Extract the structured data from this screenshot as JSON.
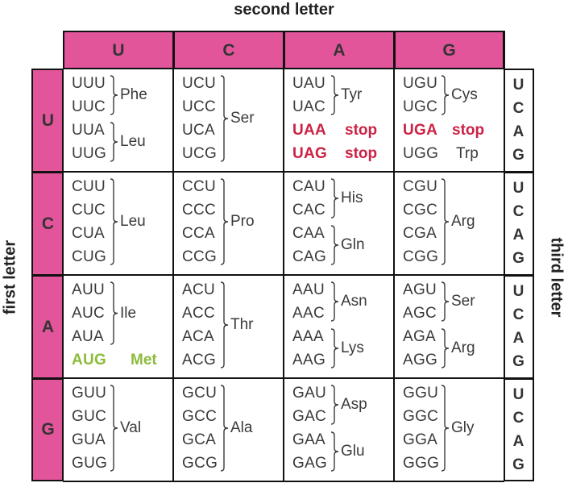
{
  "titles": {
    "top": "second letter",
    "left": "first letter",
    "right": "third letter"
  },
  "colors": {
    "header_fill": "#e2559b",
    "stop": "#cc2245",
    "start": "#8cbc3c",
    "text": "#3a3a3a"
  },
  "second_letters": [
    "U",
    "C",
    "A",
    "G"
  ],
  "first_letters": [
    "U",
    "C",
    "A",
    "G"
  ],
  "third_letters": [
    "U",
    "C",
    "A",
    "G"
  ],
  "rows": [
    {
      "cells": [
        {
          "codons": [
            "UUU",
            "UUC",
            "UUA",
            "UUG"
          ],
          "groups": [
            {
              "span": [
                0,
                1
              ],
              "label": "Phe",
              "kind": "normal"
            },
            {
              "span": [
                2,
                3
              ],
              "label": "Leu",
              "kind": "normal"
            }
          ]
        },
        {
          "codons": [
            "UCU",
            "UCC",
            "UCA",
            "UCG"
          ],
          "groups": [
            {
              "span": [
                0,
                3
              ],
              "label": "Ser",
              "kind": "normal"
            }
          ]
        },
        {
          "codons": [
            "UAU",
            "UAC",
            "UAA",
            "UAG"
          ],
          "groups": [
            {
              "span": [
                0,
                1
              ],
              "label": "Tyr",
              "kind": "normal"
            },
            {
              "span": [
                2,
                2
              ],
              "label": "stop",
              "kind": "stop"
            },
            {
              "span": [
                3,
                3
              ],
              "label": "stop",
              "kind": "stop"
            }
          ]
        },
        {
          "codons": [
            "UGU",
            "UGC",
            "UGA",
            "UGG"
          ],
          "groups": [
            {
              "span": [
                0,
                1
              ],
              "label": "Cys",
              "kind": "normal"
            },
            {
              "span": [
                2,
                2
              ],
              "label": "stop",
              "kind": "stop"
            },
            {
              "span": [
                3,
                3
              ],
              "label": "Trp",
              "kind": "plain"
            }
          ]
        }
      ]
    },
    {
      "cells": [
        {
          "codons": [
            "CUU",
            "CUC",
            "CUA",
            "CUG"
          ],
          "groups": [
            {
              "span": [
                0,
                3
              ],
              "label": "Leu",
              "kind": "normal"
            }
          ]
        },
        {
          "codons": [
            "CCU",
            "CCC",
            "CCA",
            "CCG"
          ],
          "groups": [
            {
              "span": [
                0,
                3
              ],
              "label": "Pro",
              "kind": "normal"
            }
          ]
        },
        {
          "codons": [
            "CAU",
            "CAC",
            "CAA",
            "CAG"
          ],
          "groups": [
            {
              "span": [
                0,
                1
              ],
              "label": "His",
              "kind": "normal"
            },
            {
              "span": [
                2,
                3
              ],
              "label": "Gln",
              "kind": "normal"
            }
          ]
        },
        {
          "codons": [
            "CGU",
            "CGC",
            "CGA",
            "CGG"
          ],
          "groups": [
            {
              "span": [
                0,
                3
              ],
              "label": "Arg",
              "kind": "normal"
            }
          ]
        }
      ]
    },
    {
      "cells": [
        {
          "codons": [
            "AUU",
            "AUC",
            "AUA",
            "AUG"
          ],
          "groups": [
            {
              "span": [
                0,
                2
              ],
              "label": "Ile",
              "kind": "normal"
            },
            {
              "span": [
                3,
                3
              ],
              "label": "Met",
              "kind": "start"
            }
          ]
        },
        {
          "codons": [
            "ACU",
            "ACC",
            "ACA",
            "ACG"
          ],
          "groups": [
            {
              "span": [
                0,
                3
              ],
              "label": "Thr",
              "kind": "normal"
            }
          ]
        },
        {
          "codons": [
            "AAU",
            "AAC",
            "AAA",
            "AAG"
          ],
          "groups": [
            {
              "span": [
                0,
                1
              ],
              "label": "Asn",
              "kind": "normal"
            },
            {
              "span": [
                2,
                3
              ],
              "label": "Lys",
              "kind": "normal"
            }
          ]
        },
        {
          "codons": [
            "AGU",
            "AGC",
            "AGA",
            "AGG"
          ],
          "groups": [
            {
              "span": [
                0,
                1
              ],
              "label": "Ser",
              "kind": "normal"
            },
            {
              "span": [
                2,
                3
              ],
              "label": "Arg",
              "kind": "normal"
            }
          ]
        }
      ]
    },
    {
      "cells": [
        {
          "codons": [
            "GUU",
            "GUC",
            "GUA",
            "GUG"
          ],
          "groups": [
            {
              "span": [
                0,
                3
              ],
              "label": "Val",
              "kind": "normal"
            }
          ]
        },
        {
          "codons": [
            "GCU",
            "GCC",
            "GCA",
            "GCG"
          ],
          "groups": [
            {
              "span": [
                0,
                3
              ],
              "label": "Ala",
              "kind": "normal"
            }
          ]
        },
        {
          "codons": [
            "GAU",
            "GAC",
            "GAA",
            "GAG"
          ],
          "groups": [
            {
              "span": [
                0,
                1
              ],
              "label": "Asp",
              "kind": "normal"
            },
            {
              "span": [
                2,
                3
              ],
              "label": "Glu",
              "kind": "normal"
            }
          ]
        },
        {
          "codons": [
            "GGU",
            "GGC",
            "GGA",
            "GGG"
          ],
          "groups": [
            {
              "span": [
                0,
                3
              ],
              "label": "Gly",
              "kind": "normal"
            }
          ]
        }
      ]
    }
  ]
}
